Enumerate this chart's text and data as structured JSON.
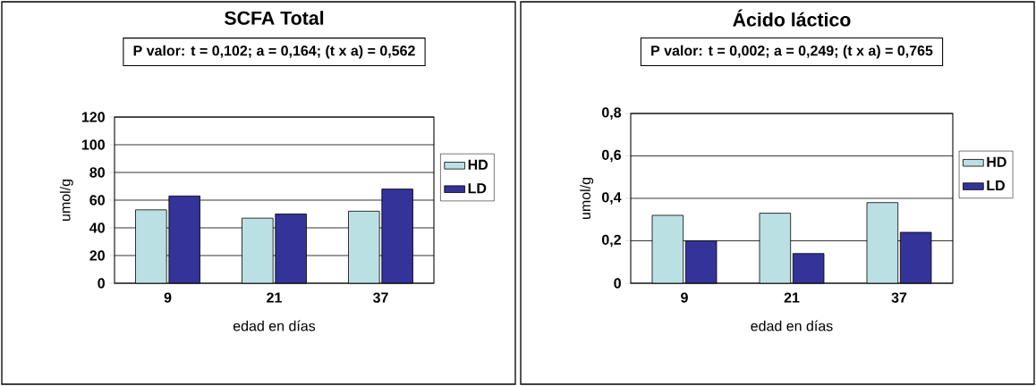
{
  "chart_data": [
    {
      "type": "bar",
      "title": "SCFA Total",
      "subtitle": "P valor: t = 0,102; a = 0,164; (t x a) = 0,562",
      "xlabel": "edad en días",
      "ylabel": "umol/g",
      "categories": [
        "9",
        "21",
        "37"
      ],
      "series": [
        {
          "name": "HD",
          "color": "#bbe0e3",
          "values": [
            53,
            47,
            52
          ]
        },
        {
          "name": "LD",
          "color": "#333399",
          "values": [
            63,
            50,
            68
          ]
        }
      ],
      "ylim": [
        0,
        120
      ],
      "yticks": [
        0,
        20,
        40,
        60,
        80,
        100,
        120
      ],
      "grid": "y",
      "legend": "right"
    },
    {
      "type": "bar",
      "title": "Ácido láctico",
      "subtitle": "P valor: t = 0,002; a = 0,249; (t x a) = 0,765",
      "xlabel": "edad en días",
      "ylabel": "umol/g",
      "categories": [
        "9",
        "21",
        "37"
      ],
      "series": [
        {
          "name": "HD",
          "color": "#bbe0e3",
          "values": [
            0.32,
            0.33,
            0.38
          ]
        },
        {
          "name": "LD",
          "color": "#333399",
          "values": [
            0.2,
            0.14,
            0.24
          ]
        }
      ],
      "ylim": [
        0,
        0.8
      ],
      "yticks": [
        {
          "value": 0,
          "label": "0"
        },
        {
          "value": 0.2,
          "label": "0,2"
        },
        {
          "value": 0.4,
          "label": "0,4"
        },
        {
          "value": 0.6,
          "label": "0,6"
        },
        {
          "value": 0.8,
          "label": "0,8"
        }
      ],
      "grid": "y",
      "legend": "right"
    }
  ]
}
